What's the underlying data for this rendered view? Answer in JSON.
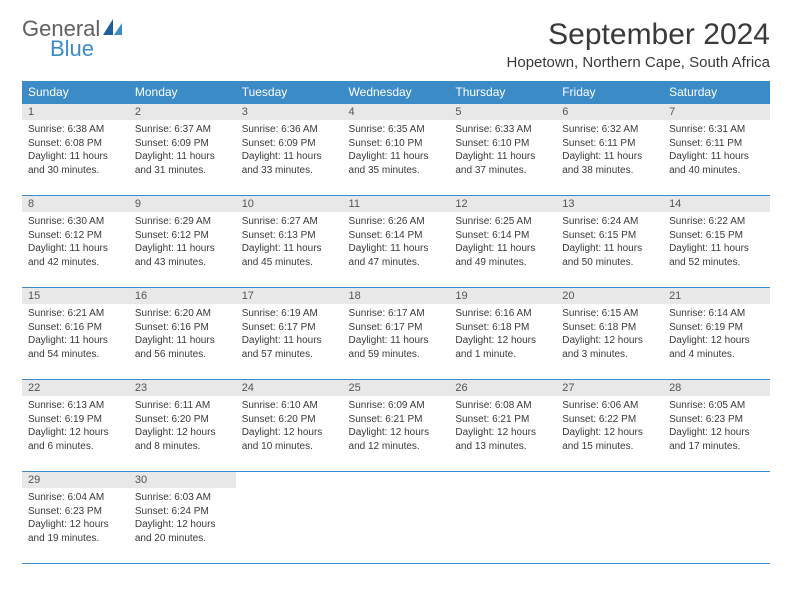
{
  "logo": {
    "general": "General",
    "blue": "Blue"
  },
  "header": {
    "title": "September 2024",
    "location": "Hopetown, Northern Cape, South Africa"
  },
  "dayHeaders": [
    "Sunday",
    "Monday",
    "Tuesday",
    "Wednesday",
    "Thursday",
    "Friday",
    "Saturday"
  ],
  "colors": {
    "headerBg": "#3b8bc6",
    "dayNumBg": "#e8e8e8",
    "border": "#3b8bc6"
  },
  "weeks": [
    [
      {
        "n": "1",
        "sr": "Sunrise: 6:38 AM",
        "ss": "Sunset: 6:08 PM",
        "dl": "Daylight: 11 hours and 30 minutes."
      },
      {
        "n": "2",
        "sr": "Sunrise: 6:37 AM",
        "ss": "Sunset: 6:09 PM",
        "dl": "Daylight: 11 hours and 31 minutes."
      },
      {
        "n": "3",
        "sr": "Sunrise: 6:36 AM",
        "ss": "Sunset: 6:09 PM",
        "dl": "Daylight: 11 hours and 33 minutes."
      },
      {
        "n": "4",
        "sr": "Sunrise: 6:35 AM",
        "ss": "Sunset: 6:10 PM",
        "dl": "Daylight: 11 hours and 35 minutes."
      },
      {
        "n": "5",
        "sr": "Sunrise: 6:33 AM",
        "ss": "Sunset: 6:10 PM",
        "dl": "Daylight: 11 hours and 37 minutes."
      },
      {
        "n": "6",
        "sr": "Sunrise: 6:32 AM",
        "ss": "Sunset: 6:11 PM",
        "dl": "Daylight: 11 hours and 38 minutes."
      },
      {
        "n": "7",
        "sr": "Sunrise: 6:31 AM",
        "ss": "Sunset: 6:11 PM",
        "dl": "Daylight: 11 hours and 40 minutes."
      }
    ],
    [
      {
        "n": "8",
        "sr": "Sunrise: 6:30 AM",
        "ss": "Sunset: 6:12 PM",
        "dl": "Daylight: 11 hours and 42 minutes."
      },
      {
        "n": "9",
        "sr": "Sunrise: 6:29 AM",
        "ss": "Sunset: 6:12 PM",
        "dl": "Daylight: 11 hours and 43 minutes."
      },
      {
        "n": "10",
        "sr": "Sunrise: 6:27 AM",
        "ss": "Sunset: 6:13 PM",
        "dl": "Daylight: 11 hours and 45 minutes."
      },
      {
        "n": "11",
        "sr": "Sunrise: 6:26 AM",
        "ss": "Sunset: 6:14 PM",
        "dl": "Daylight: 11 hours and 47 minutes."
      },
      {
        "n": "12",
        "sr": "Sunrise: 6:25 AM",
        "ss": "Sunset: 6:14 PM",
        "dl": "Daylight: 11 hours and 49 minutes."
      },
      {
        "n": "13",
        "sr": "Sunrise: 6:24 AM",
        "ss": "Sunset: 6:15 PM",
        "dl": "Daylight: 11 hours and 50 minutes."
      },
      {
        "n": "14",
        "sr": "Sunrise: 6:22 AM",
        "ss": "Sunset: 6:15 PM",
        "dl": "Daylight: 11 hours and 52 minutes."
      }
    ],
    [
      {
        "n": "15",
        "sr": "Sunrise: 6:21 AM",
        "ss": "Sunset: 6:16 PM",
        "dl": "Daylight: 11 hours and 54 minutes."
      },
      {
        "n": "16",
        "sr": "Sunrise: 6:20 AM",
        "ss": "Sunset: 6:16 PM",
        "dl": "Daylight: 11 hours and 56 minutes."
      },
      {
        "n": "17",
        "sr": "Sunrise: 6:19 AM",
        "ss": "Sunset: 6:17 PM",
        "dl": "Daylight: 11 hours and 57 minutes."
      },
      {
        "n": "18",
        "sr": "Sunrise: 6:17 AM",
        "ss": "Sunset: 6:17 PM",
        "dl": "Daylight: 11 hours and 59 minutes."
      },
      {
        "n": "19",
        "sr": "Sunrise: 6:16 AM",
        "ss": "Sunset: 6:18 PM",
        "dl": "Daylight: 12 hours and 1 minute."
      },
      {
        "n": "20",
        "sr": "Sunrise: 6:15 AM",
        "ss": "Sunset: 6:18 PM",
        "dl": "Daylight: 12 hours and 3 minutes."
      },
      {
        "n": "21",
        "sr": "Sunrise: 6:14 AM",
        "ss": "Sunset: 6:19 PM",
        "dl": "Daylight: 12 hours and 4 minutes."
      }
    ],
    [
      {
        "n": "22",
        "sr": "Sunrise: 6:13 AM",
        "ss": "Sunset: 6:19 PM",
        "dl": "Daylight: 12 hours and 6 minutes."
      },
      {
        "n": "23",
        "sr": "Sunrise: 6:11 AM",
        "ss": "Sunset: 6:20 PM",
        "dl": "Daylight: 12 hours and 8 minutes."
      },
      {
        "n": "24",
        "sr": "Sunrise: 6:10 AM",
        "ss": "Sunset: 6:20 PM",
        "dl": "Daylight: 12 hours and 10 minutes."
      },
      {
        "n": "25",
        "sr": "Sunrise: 6:09 AM",
        "ss": "Sunset: 6:21 PM",
        "dl": "Daylight: 12 hours and 12 minutes."
      },
      {
        "n": "26",
        "sr": "Sunrise: 6:08 AM",
        "ss": "Sunset: 6:21 PM",
        "dl": "Daylight: 12 hours and 13 minutes."
      },
      {
        "n": "27",
        "sr": "Sunrise: 6:06 AM",
        "ss": "Sunset: 6:22 PM",
        "dl": "Daylight: 12 hours and 15 minutes."
      },
      {
        "n": "28",
        "sr": "Sunrise: 6:05 AM",
        "ss": "Sunset: 6:23 PM",
        "dl": "Daylight: 12 hours and 17 minutes."
      }
    ],
    [
      {
        "n": "29",
        "sr": "Sunrise: 6:04 AM",
        "ss": "Sunset: 6:23 PM",
        "dl": "Daylight: 12 hours and 19 minutes."
      },
      {
        "n": "30",
        "sr": "Sunrise: 6:03 AM",
        "ss": "Sunset: 6:24 PM",
        "dl": "Daylight: 12 hours and 20 minutes."
      },
      null,
      null,
      null,
      null,
      null
    ]
  ]
}
